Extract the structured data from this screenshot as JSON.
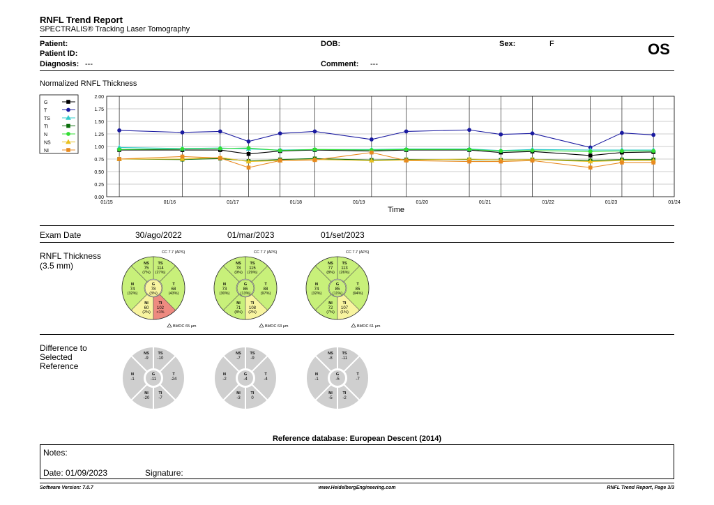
{
  "report": {
    "title": "RNFL Trend Report",
    "subtitle": "SPECTRALIS® Tracking Laser Tomography",
    "eye": "OS"
  },
  "patient": {
    "patient_label": "Patient:",
    "patient_id_label": "Patient ID:",
    "diagnosis_label": "Diagnosis:",
    "diagnosis_value": "---",
    "dob_label": "DOB:",
    "comment_label": "Comment:",
    "comment_value": "---",
    "sex_label": "Sex:",
    "sex_value": "F"
  },
  "chart_data": {
    "type": "line",
    "title": "Normalized RNFL Thickness",
    "xlabel": "Time",
    "ylabel": "",
    "x_ticks": [
      "01/15",
      "01/16",
      "01/17",
      "01/18",
      "01/19",
      "01/20",
      "01/21",
      "01/22",
      "01/23",
      "01/24"
    ],
    "y_ticks": [
      "0.00",
      "0.25",
      "0.50",
      "0.75",
      "1.00",
      "1.25",
      "1.50",
      "1.75",
      "2.00"
    ],
    "ylim": [
      0,
      2
    ],
    "xlim": [
      2015.0,
      2024.0
    ],
    "grid": true,
    "legend_position": "top-left",
    "x": [
      2015.2,
      2016.2,
      2016.8,
      2017.25,
      2017.75,
      2018.3,
      2019.2,
      2019.75,
      2020.75,
      2021.25,
      2021.75,
      2022.67,
      2023.17,
      2023.67
    ],
    "series": [
      {
        "name": "G",
        "color": "#000000",
        "marker": "square",
        "values": [
          0.93,
          0.93,
          0.93,
          0.85,
          0.91,
          0.93,
          0.91,
          0.93,
          0.93,
          0.88,
          0.9,
          0.82,
          0.88,
          0.89
        ]
      },
      {
        "name": "T",
        "color": "#1a1aa0",
        "marker": "circle",
        "values": [
          1.32,
          1.28,
          1.3,
          1.1,
          1.26,
          1.3,
          1.14,
          1.3,
          1.33,
          1.24,
          1.26,
          0.98,
          1.27,
          1.23
        ]
      },
      {
        "name": "TS",
        "color": "#33cccc",
        "marker": "triangle",
        "values": [
          0.98,
          0.96,
          0.97,
          0.95,
          0.93,
          0.94,
          0.94,
          0.95,
          0.95,
          0.92,
          0.94,
          0.93,
          0.93,
          0.93
        ]
      },
      {
        "name": "TI",
        "color": "#0a6e0a",
        "marker": "square",
        "values": [
          0.75,
          0.74,
          0.76,
          0.71,
          0.74,
          0.76,
          0.73,
          0.74,
          0.74,
          0.73,
          0.74,
          0.72,
          0.74,
          0.74
        ]
      },
      {
        "name": "N",
        "color": "#33dd33",
        "marker": "circle",
        "values": [
          0.94,
          0.95,
          0.96,
          0.97,
          0.92,
          0.94,
          0.93,
          0.94,
          0.94,
          0.91,
          0.92,
          0.9,
          0.91,
          0.91
        ]
      },
      {
        "name": "NS",
        "color": "#e8c020",
        "marker": "triangle",
        "values": [
          0.75,
          0.75,
          0.78,
          0.7,
          0.72,
          0.74,
          0.72,
          0.73,
          0.75,
          0.73,
          0.74,
          0.7,
          0.72,
          0.72
        ]
      },
      {
        "name": "NI",
        "color": "#e88a20",
        "marker": "square",
        "values": [
          0.75,
          0.8,
          0.77,
          0.58,
          0.72,
          0.73,
          0.88,
          0.72,
          0.7,
          0.7,
          0.72,
          0.58,
          0.68,
          0.68
        ]
      }
    ]
  },
  "exams": {
    "label": "Exam Date",
    "dates": [
      "30/ago/2022",
      "01/mar/2023",
      "01/set/2023"
    ]
  },
  "thickness": {
    "label_line1": "RNFL Thickness",
    "label_line2": "(3.5 mm)",
    "circles": [
      {
        "cc": "CC 7.7 (APS)",
        "bmo": "BMOC 65 µm",
        "NS": {
          "v": "75",
          "p": "(7%)",
          "color": "#c8f07a"
        },
        "TS": {
          "v": "114",
          "p": "(27%)",
          "color": "#c8f07a"
        },
        "N": {
          "v": "74",
          "p": "(32%)",
          "color": "#c8f07a"
        },
        "G": {
          "v": "78",
          "p": "(3%)",
          "color": "#f8f4a0"
        },
        "T": {
          "v": "68",
          "p": "(43%)",
          "color": "#c8f07a"
        },
        "NI": {
          "v": "60",
          "p": "(2%)",
          "color": "#f8f4a0"
        },
        "TI": {
          "v": "102",
          "p": "<1%",
          "color": "#ee8a80"
        }
      },
      {
        "cc": "CC 7.7 (APS)",
        "bmo": "BMOC 63 µm",
        "NS": {
          "v": "78",
          "p": "(9%)",
          "color": "#c8f07a"
        },
        "TS": {
          "v": "115",
          "p": "(29%)",
          "color": "#c8f07a"
        },
        "N": {
          "v": "73",
          "p": "(30%)",
          "color": "#c8f07a"
        },
        "G": {
          "v": "86",
          "p": "(13%)",
          "color": "#c8f07a"
        },
        "T": {
          "v": "88",
          "p": "(97%)",
          "color": "#c8f07a"
        },
        "NI": {
          "v": "71",
          "p": "(8%)",
          "color": "#c8f07a"
        },
        "TI": {
          "v": "108",
          "p": "(2%)",
          "color": "#f8f4a0"
        }
      },
      {
        "cc": "CC 7.7 (APS)",
        "bmo": "BMOC 61 µm",
        "NS": {
          "v": "77",
          "p": "(8%)",
          "color": "#c8f07a"
        },
        "TS": {
          "v": "113",
          "p": "(26%)",
          "color": "#c8f07a"
        },
        "N": {
          "v": "74",
          "p": "(32%)",
          "color": "#c8f07a"
        },
        "G": {
          "v": "85",
          "p": "(11%)",
          "color": "#c8f07a"
        },
        "T": {
          "v": "85",
          "p": "(94%)",
          "color": "#c8f07a"
        },
        "NI": {
          "v": "72",
          "p": "(7%)",
          "color": "#c8f07a"
        },
        "TI": {
          "v": "107",
          "p": "(1%)",
          "color": "#f8f4a0"
        }
      }
    ]
  },
  "difference": {
    "label_line1": "Difference to",
    "label_line2": "Selected",
    "label_line3": "Reference",
    "circles": [
      {
        "NS": "-9",
        "TS": "-10",
        "N": "-1",
        "G": "-11",
        "T": "-24",
        "NI": "-20",
        "TI": "-7"
      },
      {
        "NS": "-7",
        "TS": "-9",
        "N": "-2",
        "G": "-4",
        "T": "-4",
        "NI": "-3",
        "TI": "0"
      },
      {
        "NS": "-8",
        "TS": "-11",
        "N": "-1",
        "G": "-5",
        "T": "-7",
        "NI": "-5",
        "TI": "-2"
      }
    ]
  },
  "reference_db": "Reference database: European Descent (2014)",
  "notes": {
    "notes_label": "Notes:",
    "date_label": "Date: 01/09/2023",
    "signature_label": "Signature:"
  },
  "footer": {
    "software": "Software Version: 7.0.7",
    "website": "www.HeidelbergEngineering.com",
    "page": "RNFL Trend Report, Page 3/3"
  }
}
